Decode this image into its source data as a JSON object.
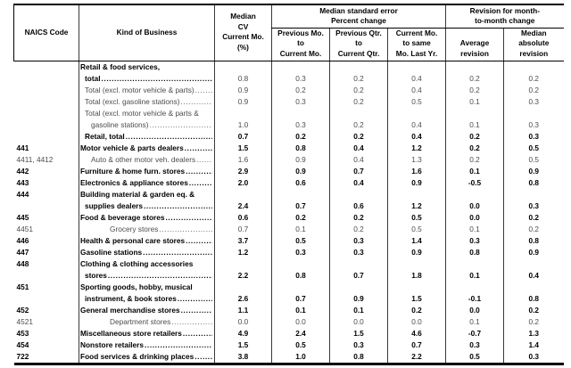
{
  "header": {
    "naics": "NAICS Code",
    "kind": "Kind of Business",
    "median_cv_lines": [
      "Median",
      "CV",
      "Current Mo.",
      "(%)"
    ],
    "groups": [
      {
        "lines": [
          "Median standard error",
          "Percent change"
        ],
        "cols": [
          [
            "Previous Mo.",
            "to",
            "Current Mo."
          ],
          [
            "Previous Qtr.",
            "to",
            "Current Qtr."
          ],
          [
            "Current Mo.",
            "to same",
            "Mo. Last Yr."
          ]
        ]
      },
      {
        "lines": [
          "Revision for month-",
          "to-month change"
        ],
        "cols": [
          [
            "Average",
            "revision"
          ],
          [
            "Median",
            "absolute",
            "revision"
          ]
        ]
      }
    ]
  },
  "rows": [
    {
      "naics": "",
      "label_bold": true,
      "values_bold": false,
      "lines": [
        {
          "text": "Retail & food services,",
          "indent": 0,
          "dots": false
        },
        {
          "text": "total",
          "indent": 1,
          "dots": true
        }
      ],
      "values": [
        "0.8",
        "0.3",
        "0.2",
        "0.4",
        "0.2",
        "0.2"
      ]
    },
    {
      "naics": "",
      "label_bold": false,
      "values_bold": false,
      "lines": [
        {
          "text": "Total (excl. motor vehicle & parts)",
          "indent": 1,
          "dots": true
        }
      ],
      "values": [
        "0.9",
        "0.2",
        "0.2",
        "0.4",
        "0.2",
        "0.2"
      ]
    },
    {
      "naics": "",
      "label_bold": false,
      "values_bold": false,
      "lines": [
        {
          "text": "Total (excl. gasoline stations)",
          "indent": 1,
          "dots": true
        }
      ],
      "values": [
        "0.9",
        "0.3",
        "0.2",
        "0.5",
        "0.1",
        "0.3"
      ]
    },
    {
      "naics": "",
      "label_bold": false,
      "values_bold": false,
      "lines": [
        {
          "text": "Total (excl. motor vehicle & parts &",
          "indent": 1,
          "dots": false
        },
        {
          "text": "gasoline stations)",
          "indent": 2,
          "dots": true
        }
      ],
      "values": [
        "1.0",
        "0.3",
        "0.2",
        "0.4",
        "0.1",
        "0.3"
      ]
    },
    {
      "naics": "",
      "label_bold": true,
      "values_bold": true,
      "lines": [
        {
          "text": "Retail, total",
          "indent": 1,
          "dots": true
        }
      ],
      "values": [
        "0.7",
        "0.2",
        "0.2",
        "0.4",
        "0.2",
        "0.3"
      ]
    },
    {
      "naics": "441",
      "label_bold": true,
      "values_bold": true,
      "lines": [
        {
          "text": "Motor vehicle & parts dealers",
          "indent": 0,
          "dots": true
        }
      ],
      "values": [
        "1.5",
        "0.8",
        "0.4",
        "1.2",
        "0.2",
        "0.5"
      ]
    },
    {
      "naics": "4411, 4412",
      "label_bold": false,
      "values_bold": false,
      "lines": [
        {
          "text": "Auto & other motor veh. dealers",
          "indent": 2,
          "dots": true
        }
      ],
      "values": [
        "1.6",
        "0.9",
        "0.4",
        "1.3",
        "0.2",
        "0.5"
      ]
    },
    {
      "naics": "442",
      "label_bold": true,
      "values_bold": true,
      "lines": [
        {
          "text": "Furniture & home furn. stores",
          "indent": 0,
          "dots": true
        }
      ],
      "values": [
        "2.9",
        "0.9",
        "0.7",
        "1.6",
        "0.1",
        "0.9"
      ]
    },
    {
      "naics": "443",
      "label_bold": true,
      "values_bold": true,
      "lines": [
        {
          "text": "Electronics & appliance stores",
          "indent": 0,
          "dots": true
        }
      ],
      "values": [
        "2.0",
        "0.6",
        "0.4",
        "0.9",
        "-0.5",
        "0.8"
      ]
    },
    {
      "naics": "444",
      "label_bold": true,
      "values_bold": true,
      "lines": [
        {
          "text": "Building material & garden eq. &",
          "indent": 0,
          "dots": false
        },
        {
          "text": "supplies dealers",
          "indent": 1,
          "dots": true
        }
      ],
      "values": [
        "2.4",
        "0.7",
        "0.6",
        "1.2",
        "0.0",
        "0.3"
      ]
    },
    {
      "naics": "445",
      "label_bold": true,
      "values_bold": true,
      "lines": [
        {
          "text": "Food & beverage stores",
          "indent": 0,
          "dots": true
        }
      ],
      "values": [
        "0.6",
        "0.2",
        "0.2",
        "0.5",
        "0.0",
        "0.2"
      ]
    },
    {
      "naics": "4451",
      "label_bold": false,
      "values_bold": false,
      "lines": [
        {
          "text": "Grocery stores",
          "indent": 3,
          "dots": true
        }
      ],
      "values": [
        "0.7",
        "0.1",
        "0.2",
        "0.5",
        "0.1",
        "0.2"
      ]
    },
    {
      "naics": "446",
      "label_bold": true,
      "values_bold": true,
      "lines": [
        {
          "text": "Health & personal care stores",
          "indent": 0,
          "dots": true
        }
      ],
      "values": [
        "3.7",
        "0.5",
        "0.3",
        "1.4",
        "0.3",
        "0.8"
      ]
    },
    {
      "naics": "447",
      "label_bold": true,
      "values_bold": true,
      "lines": [
        {
          "text": "Gasoline stations",
          "indent": 0,
          "dots": true
        }
      ],
      "values": [
        "1.2",
        "0.3",
        "0.3",
        "0.9",
        "0.8",
        "0.9"
      ]
    },
    {
      "naics": "448",
      "label_bold": true,
      "values_bold": true,
      "lines": [
        {
          "text": "Clothing & clothing accessories",
          "indent": 0,
          "dots": false
        },
        {
          "text": "stores",
          "indent": 1,
          "dots": true
        }
      ],
      "values": [
        "2.2",
        "0.8",
        "0.7",
        "1.8",
        "0.1",
        "0.4"
      ]
    },
    {
      "naics": "451",
      "label_bold": true,
      "values_bold": true,
      "lines": [
        {
          "text": "Sporting goods, hobby, musical",
          "indent": 0,
          "dots": false
        },
        {
          "text": "instrument, & book stores",
          "indent": 1,
          "dots": true
        }
      ],
      "values": [
        "2.6",
        "0.7",
        "0.9",
        "1.5",
        "-0.1",
        "0.8"
      ]
    },
    {
      "naics": "452",
      "label_bold": true,
      "values_bold": true,
      "lines": [
        {
          "text": "General merchandise stores",
          "indent": 0,
          "dots": true
        }
      ],
      "values": [
        "1.1",
        "0.1",
        "0.1",
        "0.2",
        "0.0",
        "0.2"
      ]
    },
    {
      "naics": "4521",
      "label_bold": false,
      "values_bold": false,
      "lines": [
        {
          "text": "Department stores",
          "indent": 3,
          "dots": true
        }
      ],
      "values": [
        "0.0",
        "0.0",
        "0.0",
        "0.0",
        "0.1",
        "0.2"
      ]
    },
    {
      "naics": "453",
      "label_bold": true,
      "values_bold": true,
      "lines": [
        {
          "text": "Miscellaneous store retailers",
          "indent": 0,
          "dots": true
        }
      ],
      "values": [
        "4.9",
        "2.4",
        "1.5",
        "4.6",
        "-0.7",
        "1.3"
      ]
    },
    {
      "naics": "454",
      "label_bold": true,
      "values_bold": true,
      "lines": [
        {
          "text": "Nonstore retailers",
          "indent": 0,
          "dots": true
        }
      ],
      "values": [
        "1.5",
        "0.5",
        "0.3",
        "0.7",
        "0.3",
        "1.4"
      ]
    },
    {
      "naics": "722",
      "label_bold": true,
      "values_bold": true,
      "lines": [
        {
          "text": "Food services & drinking places",
          "indent": 0,
          "dots": true
        }
      ],
      "values": [
        "3.8",
        "1.0",
        "0.8",
        "2.2",
        "0.5",
        "0.3"
      ]
    }
  ],
  "colors": {
    "text_bold": "#000000",
    "text_regular": "#4d4d4d",
    "border": "#000000",
    "grid": "#3a3a3a",
    "background": "#ffffff"
  }
}
